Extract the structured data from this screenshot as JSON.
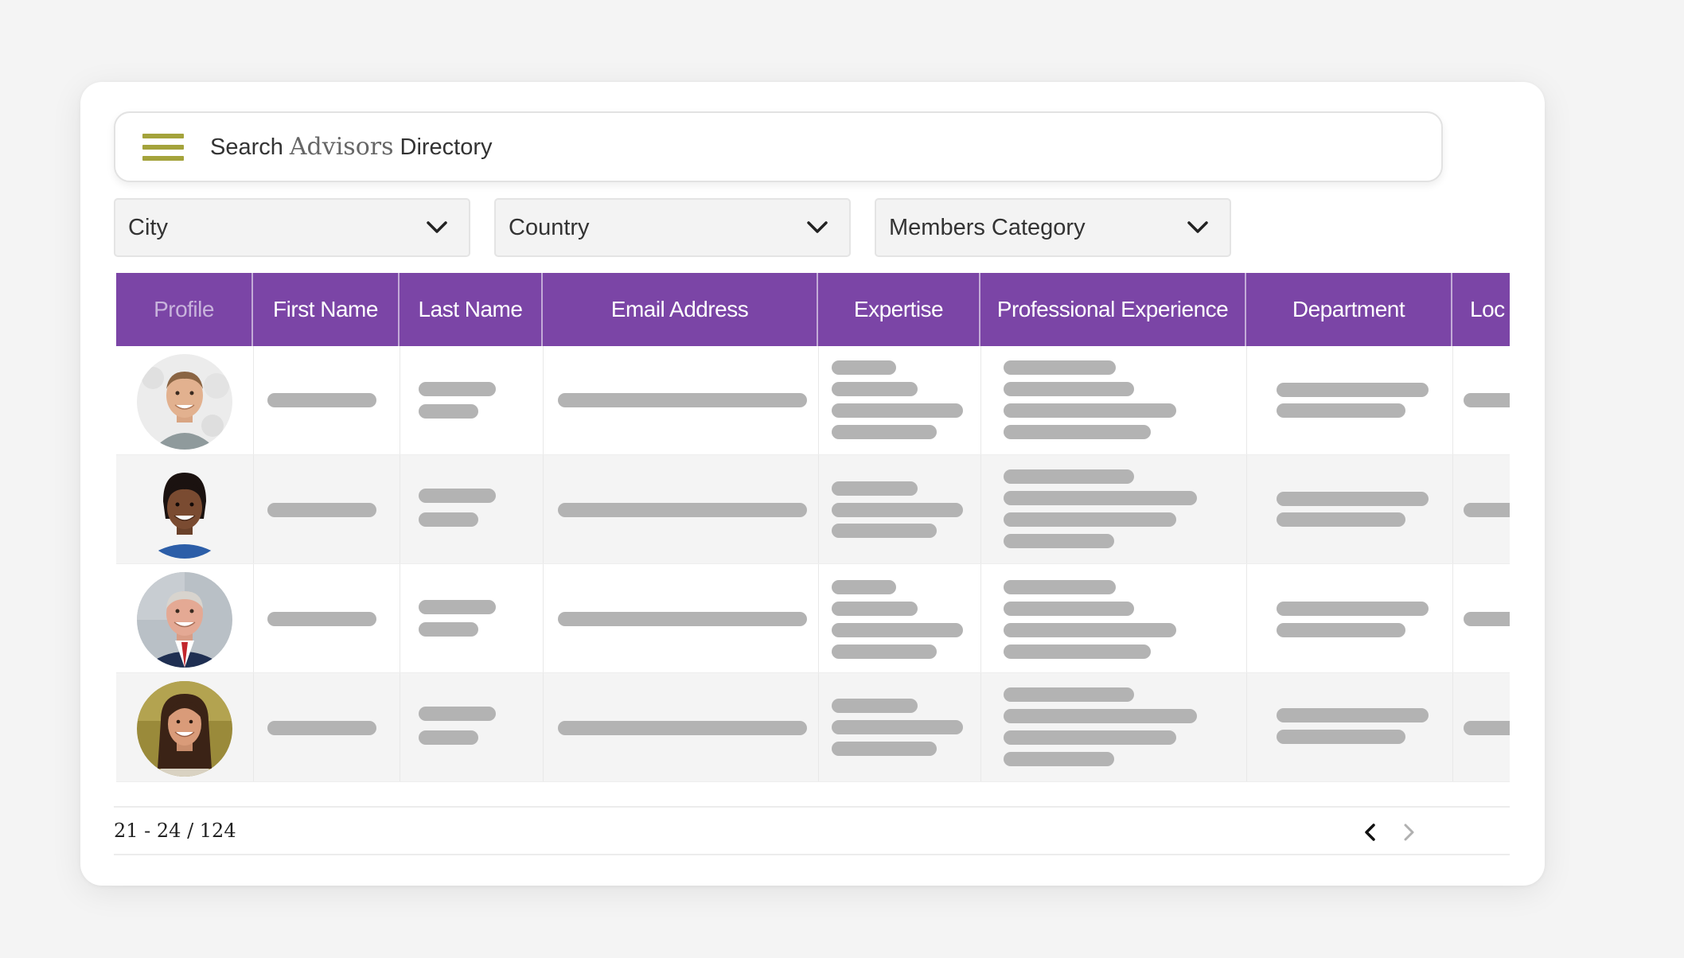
{
  "search": {
    "word1": "Search",
    "word2": "Advisors",
    "word3": "Directory",
    "menu_icon": "hamburger-icon"
  },
  "filters": [
    {
      "label": "City",
      "icon": "chevron-down-icon"
    },
    {
      "label": "Country",
      "icon": "chevron-down-icon"
    },
    {
      "label": "Members Category",
      "icon": "chevron-down-icon"
    }
  ],
  "table": {
    "columns": [
      "Profile",
      "First Name",
      "Last Name",
      "Email Address",
      "Expertise",
      "Professional Experience",
      "Department",
      "Loc"
    ],
    "rows": [
      {
        "avatar": "avatar-man-smiling-gray-shirt"
      },
      {
        "avatar": "avatar-woman-smiling-blue-top"
      },
      {
        "avatar": "avatar-man-suit-red-tie"
      },
      {
        "avatar": "avatar-woman-long-hair"
      }
    ]
  },
  "pagination": {
    "range": "21 - 24 / 124",
    "prev_icon": "chevron-left-icon",
    "next_icon": "chevron-right-icon"
  },
  "colors": {
    "header_bg": "#7b45a6",
    "menu_icon": "#a4a33b",
    "placeholder_bar": "#b3b3b3"
  }
}
